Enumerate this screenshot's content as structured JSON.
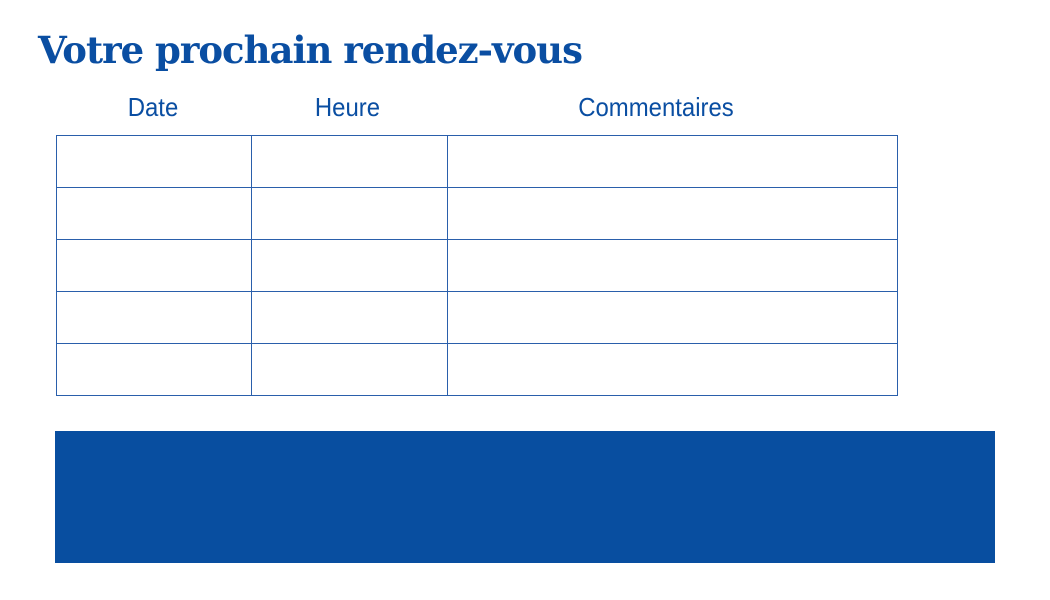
{
  "title": "Votre prochain rendez-vous",
  "table": {
    "headers": [
      "Date",
      "Heure",
      "Commentaires"
    ],
    "rows": [
      [
        "",
        "",
        ""
      ],
      [
        "",
        "",
        ""
      ],
      [
        "",
        "",
        ""
      ],
      [
        "",
        "",
        ""
      ],
      [
        "",
        "",
        ""
      ]
    ]
  },
  "colors": {
    "brand": "#0a4ea2",
    "band": "#084ea0"
  }
}
